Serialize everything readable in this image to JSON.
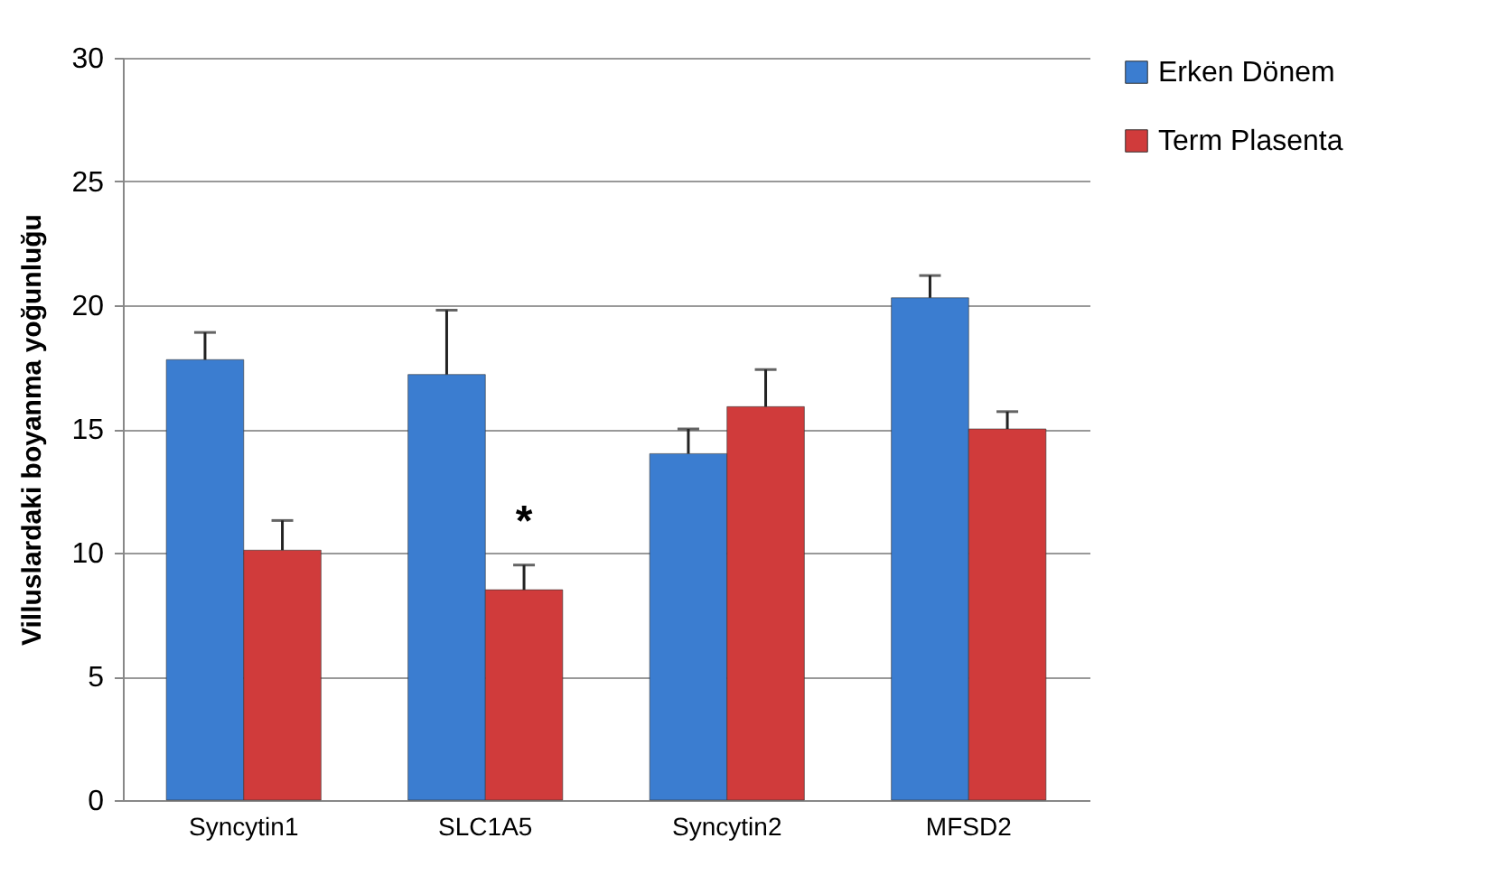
{
  "chart_data": {
    "type": "bar",
    "ylabel": "Villuslardaki boyanma yoğunluğu",
    "categories": [
      "Syncytin1",
      "SLC1A5",
      "Syncytin2",
      "MFSD2"
    ],
    "series": [
      {
        "name": "Erken Dönem",
        "color": "#3b7dd0",
        "values": [
          17.8,
          17.2,
          14.0,
          20.3
        ],
        "errors": [
          [
            17.8,
            18.9
          ],
          [
            17.2,
            19.8
          ],
          [
            14.0,
            15.0
          ],
          [
            20.3,
            21.2
          ]
        ]
      },
      {
        "name": "Term Plasenta",
        "color": "#d03b3b",
        "values": [
          10.1,
          8.5,
          15.9,
          15.0
        ],
        "errors": [
          [
            10.1,
            11.3
          ],
          [
            8.5,
            9.5
          ],
          [
            15.9,
            17.4
          ],
          [
            15.0,
            15.7
          ]
        ]
      }
    ],
    "ylim": [
      0,
      30
    ],
    "yticks": [
      0,
      5,
      10,
      15,
      20,
      25,
      30
    ],
    "grid": "y",
    "legend": "right",
    "annotations": [
      {
        "text": "*",
        "x": "SLC1A5",
        "y": 11.2
      }
    ]
  }
}
